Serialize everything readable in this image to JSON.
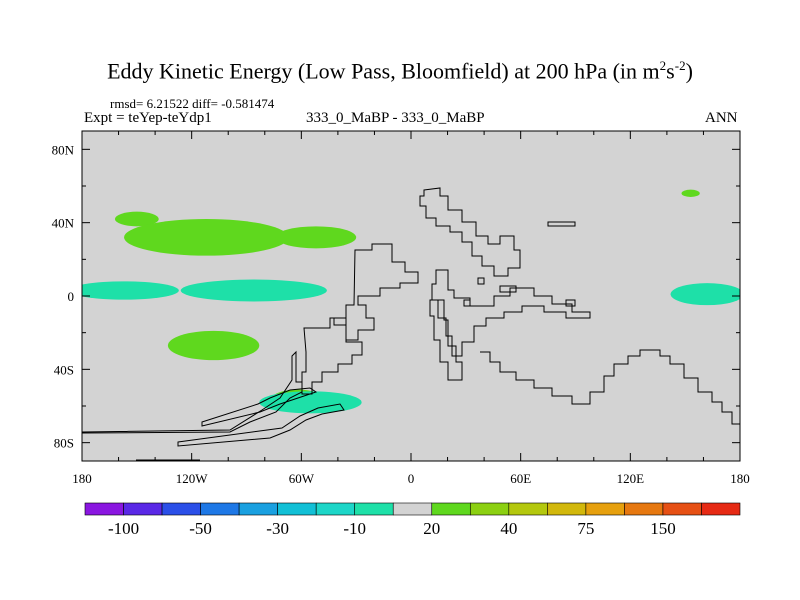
{
  "chart_data": {
    "type": "contour-map",
    "title": "Eddy Kinetic Energy (Low Pass, Bloomfield) at 200 hPa (in m",
    "title_units": {
      "sup1": "2",
      "mid": "s",
      "sup2": "-2",
      "end": ")"
    },
    "stats": "rmsd= 6.21522 diff= -0.581474",
    "left_label": "Expt = teYep-teYdp1",
    "center_label": "333_0_MaBP - 333_0_MaBP",
    "right_label": "ANN",
    "xlim": [
      -180,
      180
    ],
    "ylim": [
      -90,
      90
    ],
    "x_ticks": [
      {
        "value": -180,
        "label": "180"
      },
      {
        "value": -120,
        "label": "120W"
      },
      {
        "value": -60,
        "label": "60W"
      },
      {
        "value": 0,
        "label": "0"
      },
      {
        "value": 60,
        "label": "60E"
      },
      {
        "value": 120,
        "label": "120E"
      },
      {
        "value": 180,
        "label": "180"
      }
    ],
    "y_ticks": [
      {
        "value": 80,
        "label": "80N"
      },
      {
        "value": 40,
        "label": "40N"
      },
      {
        "value": 0,
        "label": "0"
      },
      {
        "value": -40,
        "label": "40S"
      },
      {
        "value": -80,
        "label": "80S"
      }
    ],
    "background_color": "#d3d3d3",
    "colorbar": {
      "colors": [
        "#8a16e0",
        "#5a28e6",
        "#2b4fe8",
        "#1e78e6",
        "#1aa0e0",
        "#12c0d6",
        "#1dd6c8",
        "#1ee0a8",
        "#d3d3d3",
        "#5fd81e",
        "#8cd012",
        "#b4c80e",
        "#d2b80c",
        "#e6a00e",
        "#e67810",
        "#e65014",
        "#e62a14"
      ],
      "labels": [
        {
          "boundary": 1,
          "text": "-100"
        },
        {
          "boundary": 3,
          "text": "-50"
        },
        {
          "boundary": 5,
          "text": "-30"
        },
        {
          "boundary": 7,
          "text": "-10"
        },
        {
          "boundary": 9,
          "text": "20"
        },
        {
          "boundary": 11,
          "text": "40"
        },
        {
          "boundary": 13,
          "text": "75"
        },
        {
          "boundary": 15,
          "text": "150"
        }
      ]
    },
    "regions": [
      {
        "name": "green-blob-north-pacific-small",
        "level": "10 to 20",
        "color": "#5fd81e",
        "center": [
          -150,
          42
        ],
        "radius": [
          12,
          4
        ]
      },
      {
        "name": "green-blob-north-pacific",
        "level": "10 to 20",
        "color": "#5fd81e",
        "center": [
          -112,
          32
        ],
        "radius": [
          45,
          10
        ]
      },
      {
        "name": "green-blob-north-pacific-east",
        "level": "10 to 20",
        "color": "#5fd81e",
        "center": [
          -52,
          32
        ],
        "radius": [
          22,
          6
        ]
      },
      {
        "name": "green-blob-south-pacific",
        "level": "10 to 20",
        "color": "#5fd81e",
        "center": [
          -108,
          -27
        ],
        "radius": [
          25,
          8
        ]
      },
      {
        "name": "green-blob-southern-ocean",
        "level": "10 to 20",
        "color": "#5fd81e",
        "center": [
          -62,
          -57
        ],
        "radius": [
          15,
          6
        ]
      },
      {
        "name": "green-blob-north-atlantic-small",
        "level": "10 to 20",
        "color": "#5fd81e",
        "center": [
          153,
          56
        ],
        "radius": [
          5,
          2
        ]
      },
      {
        "name": "cyan-band-equatorial-west",
        "level": "-10 to 0",
        "color": "#1ee0a8",
        "center": [
          -157,
          3
        ],
        "radius": [
          30,
          5
        ]
      },
      {
        "name": "cyan-band-equatorial-east",
        "level": "-10 to 0",
        "color": "#1ee0a8",
        "center": [
          -86,
          3
        ],
        "radius": [
          40,
          6
        ]
      },
      {
        "name": "cyan-band-equatorial-dateline",
        "level": "-10 to 0",
        "color": "#1ee0a8",
        "center": [
          162,
          1
        ],
        "radius": [
          20,
          6
        ]
      },
      {
        "name": "cyan-blob-south-atlantic",
        "level": "-10 to 0",
        "color": "#1ee0a8",
        "center": [
          -55,
          -58
        ],
        "radius": [
          28,
          6
        ]
      }
    ]
  }
}
